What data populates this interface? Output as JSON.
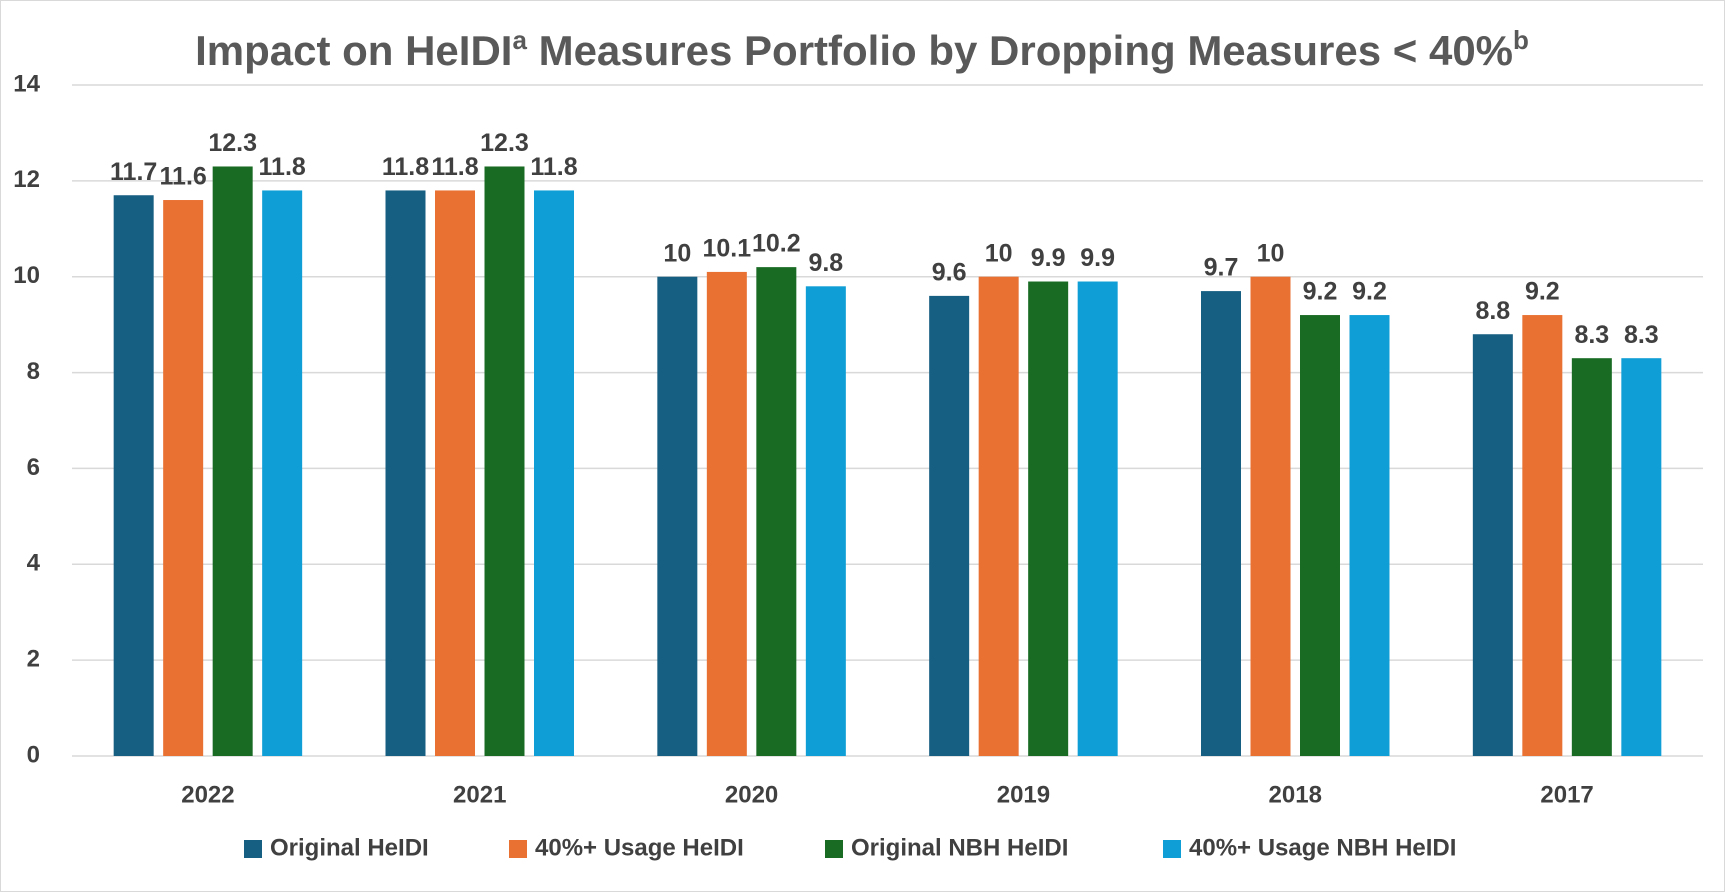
{
  "chart_data": {
    "type": "bar",
    "title": [
      "Impact on HeIDI",
      "a",
      " Measures Portfolio by Dropping Measures < 40%",
      "b"
    ],
    "categories": [
      "2022",
      "2021",
      "2020",
      "2019",
      "2018",
      "2017"
    ],
    "series": [
      {
        "name": "Original HeIDI",
        "color": "#175f82",
        "values": [
          11.7,
          11.8,
          10,
          9.6,
          9.7,
          8.8
        ]
      },
      {
        "name": "40%+ Usage HeIDI",
        "color": "#e97132",
        "values": [
          11.6,
          11.8,
          10.1,
          10,
          10,
          9.2
        ]
      },
      {
        "name": "Original NBH HeIDI",
        "color": "#196b24",
        "values": [
          12.3,
          12.3,
          10.2,
          9.9,
          9.2,
          8.3
        ]
      },
      {
        "name": "40%+ Usage NBH HeIDI",
        "color": "#0f9ed5",
        "values": [
          11.8,
          11.8,
          9.8,
          9.9,
          9.2,
          8.3
        ]
      }
    ],
    "ylim": [
      0,
      14
    ],
    "yticks": [
      0,
      2,
      4,
      6,
      8,
      10,
      12,
      14
    ],
    "grid": true,
    "legend": "bottom"
  }
}
